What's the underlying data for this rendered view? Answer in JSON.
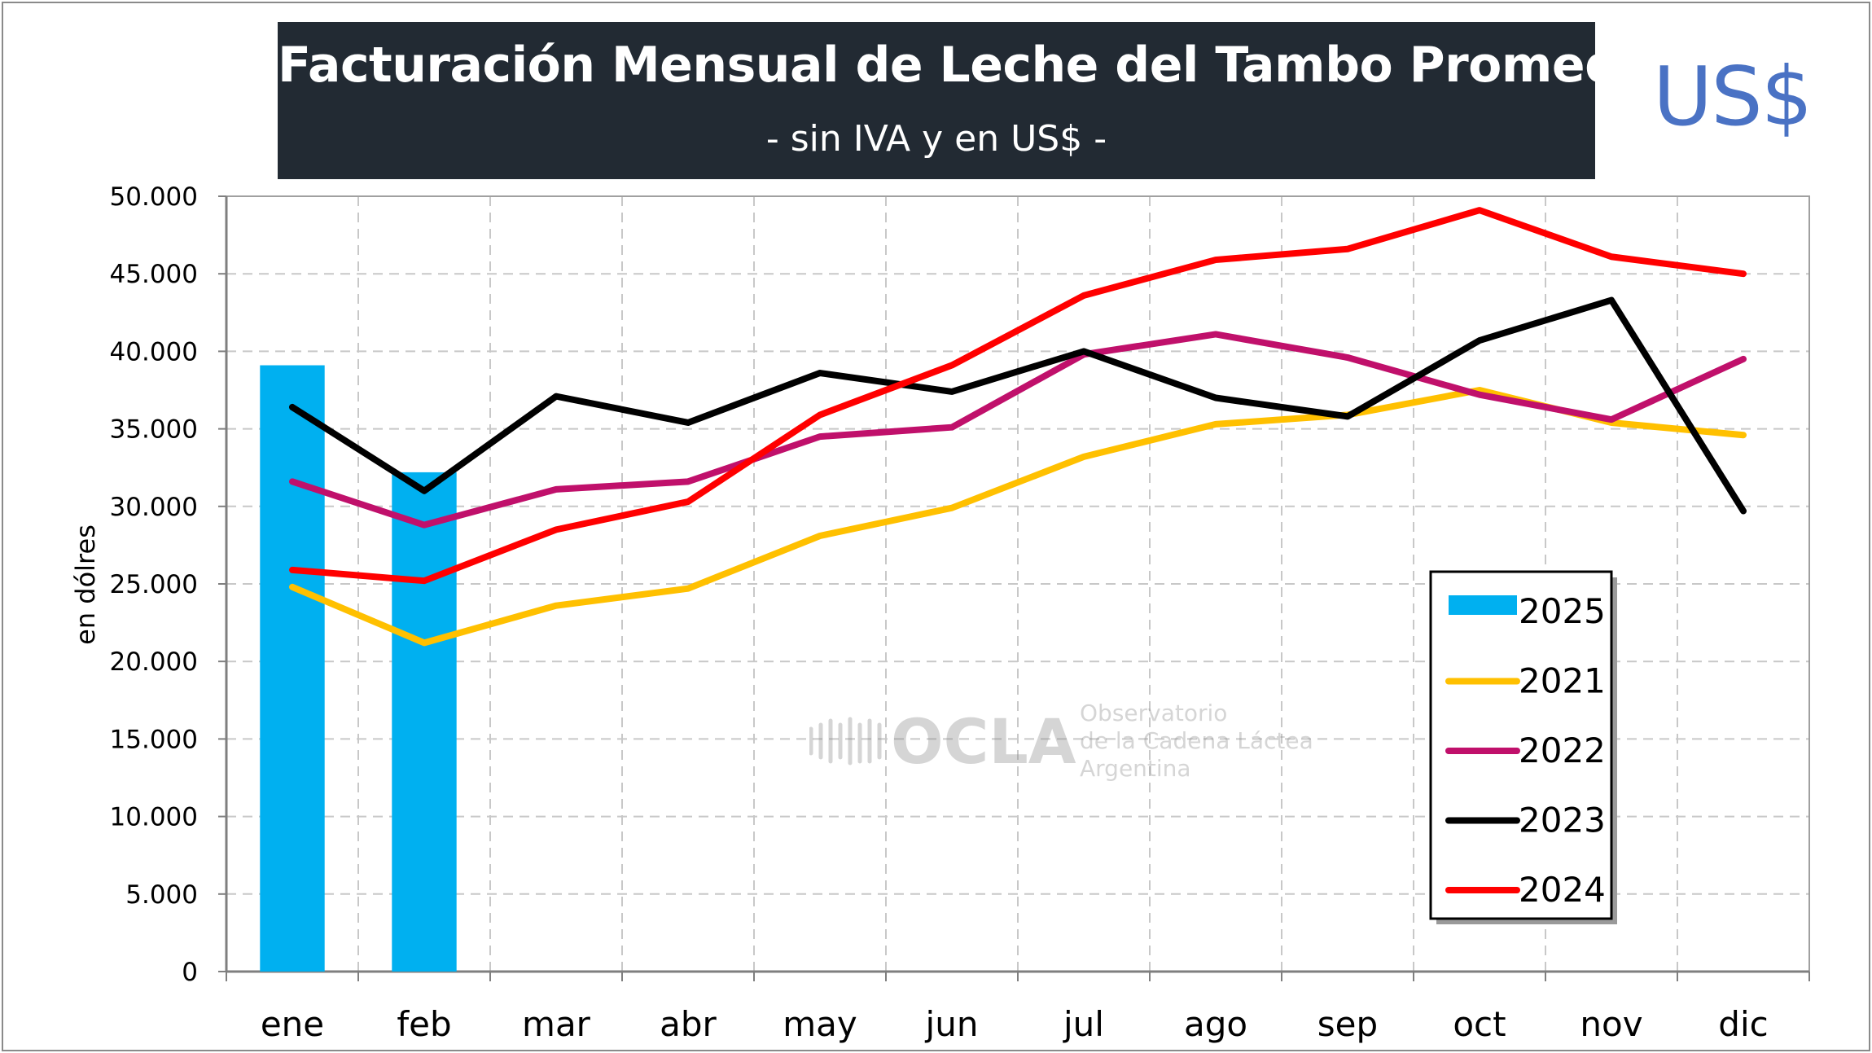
{
  "title": "Facturación Mensual de Leche del Tambo Promedio",
  "subtitle": "- sin IVA y en US$ -",
  "currency_badge": "US$",
  "watermark": {
    "brand": "OCLA",
    "line1": "Observatorio",
    "line2": "de la Cadena Láctea",
    "line3": "Argentina"
  },
  "colors": {
    "2025": "#00b0f0",
    "2021": "#ffc000",
    "2022": "#c0106b",
    "2023": "#000000",
    "2024": "#ff0000",
    "title_bg": "#222a33",
    "badge": "#4a72c4"
  },
  "chart_data": {
    "type": "bar+line",
    "title": "Facturación Mensual de Leche del Tambo Promedio",
    "subtitle": "- sin IVA y en US$ -",
    "xlabel": "",
    "ylabel": "en dólres",
    "ylim": [
      0,
      50000
    ],
    "yticks": [
      "0",
      "5.000",
      "10.000",
      "15.000",
      "20.000",
      "25.000",
      "30.000",
      "35.000",
      "40.000",
      "45.000",
      "50.000"
    ],
    "grid": true,
    "legend_position": "bottom-right",
    "categories": [
      "ene",
      "feb",
      "mar",
      "abr",
      "may",
      "jun",
      "jul",
      "ago",
      "sep",
      "oct",
      "nov",
      "dic"
    ],
    "bars": [
      {
        "name": "2025",
        "values": [
          39100,
          32200
        ]
      }
    ],
    "series": [
      {
        "name": "2021",
        "values": [
          24800,
          21200,
          23600,
          24700,
          28100,
          29900,
          33200,
          35300,
          35900,
          37500,
          35400,
          34600
        ]
      },
      {
        "name": "2022",
        "values": [
          31600,
          28800,
          31100,
          31600,
          34500,
          35100,
          39800,
          41100,
          39600,
          37200,
          35600,
          39500
        ]
      },
      {
        "name": "2023",
        "values": [
          36400,
          31000,
          37100,
          35400,
          38600,
          37400,
          40000,
          37000,
          35800,
          40700,
          43300,
          29700
        ]
      },
      {
        "name": "2024",
        "values": [
          25900,
          25200,
          28500,
          30300,
          35900,
          39100,
          43600,
          45900,
          46600,
          49100,
          46100,
          45000
        ]
      }
    ],
    "legend": [
      "2025",
      "2021",
      "2022",
      "2023",
      "2024"
    ]
  }
}
